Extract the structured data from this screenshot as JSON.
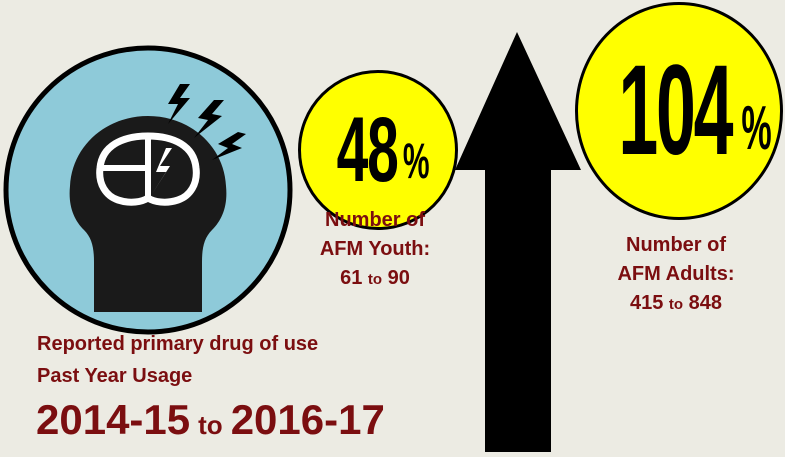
{
  "colors": {
    "background": "#ecebe3",
    "icon_circle": "#8ecad9",
    "badge_fill": "#ffff00",
    "text_accent": "#7b0e10",
    "arrow": "#000000"
  },
  "icon": "head-with-lightning-brain-icon",
  "youth": {
    "percent_value": "48",
    "percent_sign": "%",
    "line1": "Number of",
    "line2": "AFM Youth:",
    "from": "61",
    "to_word": "to",
    "to": "90"
  },
  "adults": {
    "percent_value": "104",
    "percent_sign": "%",
    "line1": "Number of",
    "line2": "AFM Adults:",
    "from": "415",
    "to_word": "to",
    "to": "848"
  },
  "caption": {
    "line1": "Reported primary drug of use",
    "line2": "Past Year Usage"
  },
  "period": {
    "start": "2014-15",
    "to_word": "to",
    "end": "2016-17"
  },
  "trend_icon": "up-arrow-icon"
}
